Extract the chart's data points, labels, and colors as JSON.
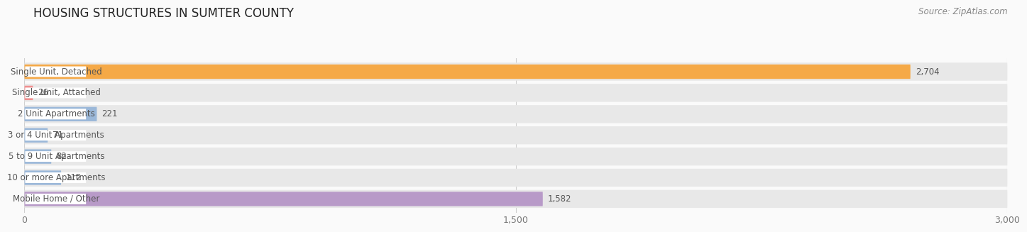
{
  "title": "HOUSING STRUCTURES IN SUMTER COUNTY",
  "source": "Source: ZipAtlas.com",
  "categories": [
    "Single Unit, Detached",
    "Single Unit, Attached",
    "2 Unit Apartments",
    "3 or 4 Unit Apartments",
    "5 to 9 Unit Apartments",
    "10 or more Apartments",
    "Mobile Home / Other"
  ],
  "values": [
    2704,
    26,
    221,
    71,
    82,
    112,
    1582
  ],
  "bar_colors": [
    "#F5A947",
    "#F09090",
    "#9BB8D9",
    "#9BB8D9",
    "#9BB8D9",
    "#9BB8D9",
    "#B89AC8"
  ],
  "bar_bg_color": "#E8E8E8",
  "xlim": [
    0,
    3000
  ],
  "xticks": [
    0,
    1500,
    3000
  ],
  "xtick_labels": [
    "0",
    "1,500",
    "3,000"
  ],
  "background_color": "#FAFAFA",
  "title_fontsize": 12,
  "source_fontsize": 8.5,
  "label_fontsize": 8.5,
  "value_fontsize": 8.5,
  "label_box_color": "white",
  "text_color": "#555555",
  "grid_color": "#D0D0D0"
}
